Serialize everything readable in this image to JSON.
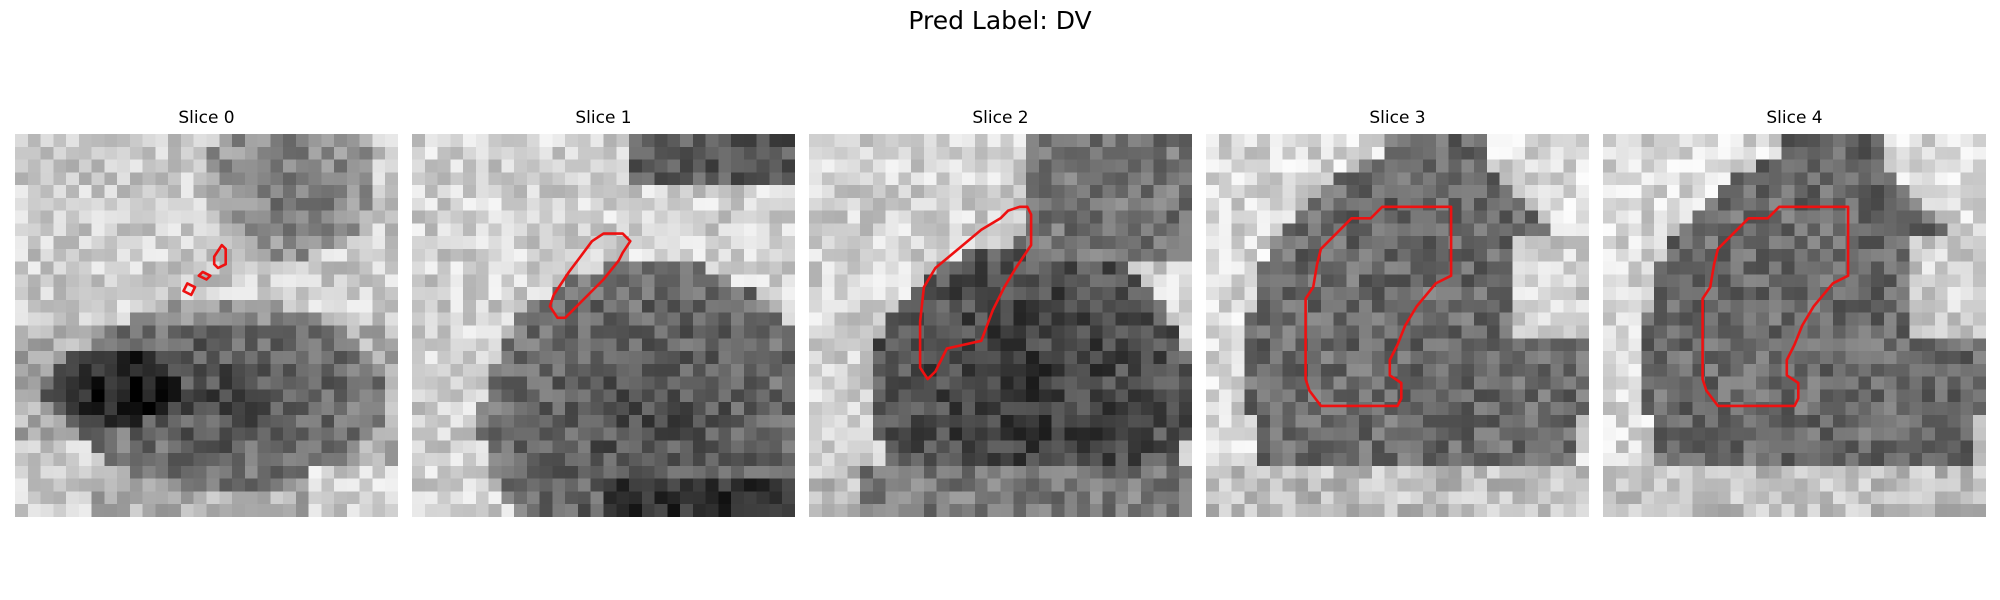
{
  "figure": {
    "suptitle": "Pred Label: DV",
    "contour_color": "#ee1111",
    "panels": [
      {
        "title": "Slice 0"
      },
      {
        "title": "Slice 1"
      },
      {
        "title": "Slice 2"
      },
      {
        "title": "Slice 3"
      },
      {
        "title": "Slice 4"
      }
    ]
  }
}
